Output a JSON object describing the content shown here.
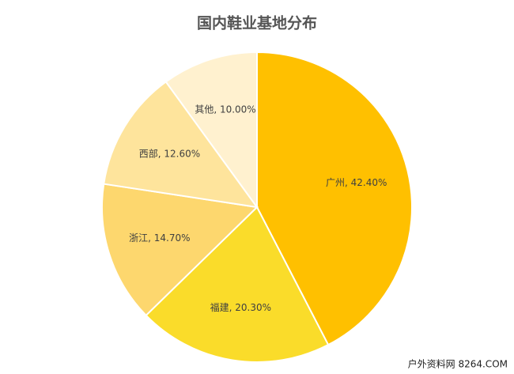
{
  "chart_data": {
    "type": "pie",
    "title": "国内鞋业基地分布",
    "categories": [
      "广州",
      "福建",
      "浙江",
      "西部",
      "其他"
    ],
    "values": [
      42.4,
      20.3,
      14.7,
      12.6,
      10.0
    ],
    "value_labels": [
      "广州, 42.40%",
      "福建, 20.30%",
      "浙江, 14.70%",
      "西部, 12.60%",
      "其他, 10.00%"
    ],
    "colors": [
      "#ffc000",
      "#fadc2a",
      "#fdd76e",
      "#fee49c",
      "#fff1cf"
    ]
  },
  "watermark": "户外资料网 8264.COM"
}
